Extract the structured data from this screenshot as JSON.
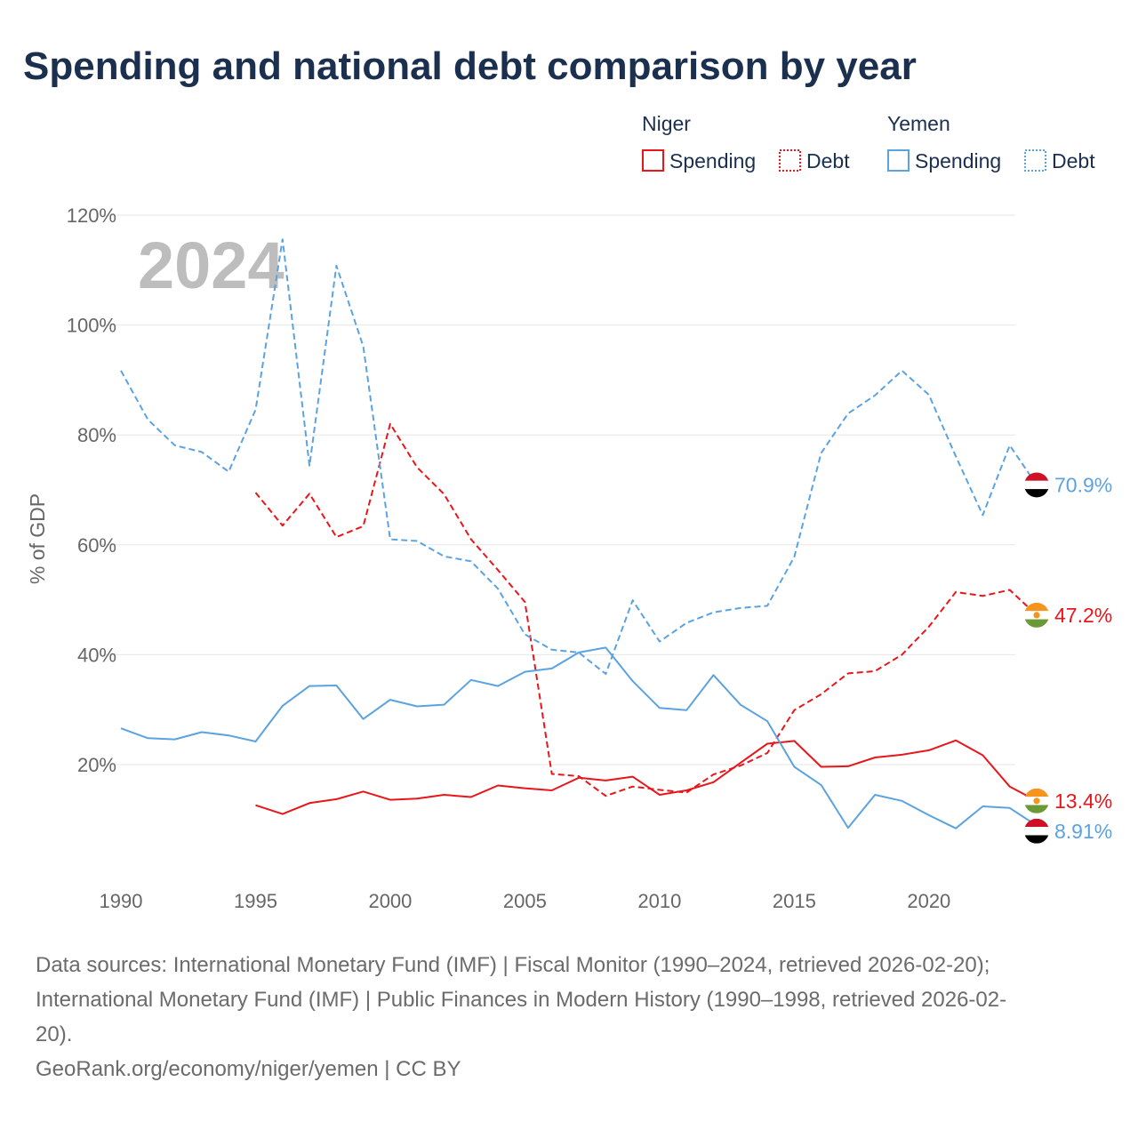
{
  "title": "Spending and national debt comparison by year",
  "legend": {
    "groups": [
      {
        "country": "Niger",
        "color": "#e8161b",
        "items": [
          {
            "label": "Spending",
            "style": "solid"
          },
          {
            "label": "Debt",
            "style": "dotted"
          }
        ]
      },
      {
        "country": "Yemen",
        "color": "#5ba3e0",
        "items": [
          {
            "label": "Spending",
            "style": "solid"
          },
          {
            "label": "Debt",
            "style": "dotted"
          }
        ]
      }
    ]
  },
  "chart_data": {
    "type": "line",
    "ylabel": "% of GDP",
    "ylim": [
      0,
      120
    ],
    "xlim": [
      1990,
      2024
    ],
    "yticks": [
      20,
      40,
      60,
      80,
      100,
      120
    ],
    "ytick_labels": [
      "20%",
      "40%",
      "60%",
      "80%",
      "100%",
      "120%"
    ],
    "xticks": [
      1990,
      1995,
      2000,
      2005,
      2010,
      2015,
      2020
    ],
    "xtick_labels": [
      "1990",
      "1995",
      "2000",
      "2005",
      "2010",
      "2015",
      "2020"
    ],
    "year_watermark": "2024",
    "series": [
      {
        "name": "Niger Spending",
        "country": "Niger",
        "kind": "spending",
        "color": "#e8161b",
        "style": "solid",
        "end_label": "13.4%",
        "x": [
          1995,
          1996,
          1997,
          1998,
          1999,
          2000,
          2001,
          2002,
          2003,
          2004,
          2005,
          2006,
          2007,
          2008,
          2009,
          2010,
          2011,
          2012,
          2013,
          2014,
          2015,
          2016,
          2017,
          2018,
          2019,
          2020,
          2021,
          2022,
          2023,
          2024
        ],
        "values": [
          12.6,
          11.0,
          13.0,
          13.7,
          15.1,
          13.6,
          13.8,
          14.5,
          14.1,
          16.2,
          15.7,
          15.3,
          17.6,
          17.1,
          17.8,
          14.5,
          15.3,
          16.8,
          20.3,
          23.8,
          24.3,
          19.6,
          19.7,
          21.3,
          21.8,
          22.6,
          24.4,
          21.7,
          16.0,
          13.4
        ]
      },
      {
        "name": "Niger Debt",
        "country": "Niger",
        "kind": "debt",
        "color": "#e8161b",
        "style": "dashed",
        "end_label": "47.2%",
        "x": [
          1995,
          1996,
          1997,
          1998,
          1999,
          2000,
          2001,
          2002,
          2003,
          2004,
          2005,
          2006,
          2007,
          2008,
          2009,
          2010,
          2011,
          2012,
          2013,
          2014,
          2015,
          2016,
          2017,
          2018,
          2019,
          2020,
          2021,
          2022,
          2023,
          2024
        ],
        "values": [
          69.5,
          63.5,
          69.3,
          61.4,
          63.4,
          82.0,
          74.1,
          69.2,
          61.0,
          55.4,
          49.6,
          18.3,
          17.9,
          14.3,
          16.0,
          15.4,
          14.9,
          18.2,
          19.8,
          22.1,
          29.9,
          32.8,
          36.6,
          37.0,
          40.0,
          45.1,
          51.4,
          50.7,
          51.8,
          47.2
        ]
      },
      {
        "name": "Yemen Spending",
        "country": "Yemen",
        "kind": "spending",
        "color": "#5ba3e0",
        "style": "solid",
        "end_label": "8.91%",
        "x": [
          1990,
          1991,
          1992,
          1993,
          1994,
          1995,
          1996,
          1997,
          1998,
          1999,
          2000,
          2001,
          2002,
          2003,
          2004,
          2005,
          2006,
          2007,
          2008,
          2009,
          2010,
          2011,
          2012,
          2013,
          2014,
          2015,
          2016,
          2017,
          2018,
          2019,
          2020,
          2021,
          2022,
          2023,
          2024
        ],
        "values": [
          26.6,
          24.8,
          24.6,
          25.9,
          25.3,
          24.2,
          30.7,
          34.3,
          34.4,
          28.3,
          31.8,
          30.6,
          30.9,
          35.4,
          34.3,
          36.9,
          37.5,
          40.4,
          41.3,
          35.2,
          30.3,
          29.9,
          36.3,
          30.9,
          27.9,
          19.6,
          16.3,
          8.5,
          14.5,
          13.4,
          10.8,
          8.4,
          12.4,
          12.1,
          8.9
        ]
      },
      {
        "name": "Yemen Debt",
        "country": "Yemen",
        "kind": "debt",
        "color": "#5ba3e0",
        "style": "dashed",
        "end_label": "70.9%",
        "x": [
          1990,
          1991,
          1992,
          1993,
          1994,
          1995,
          1996,
          1997,
          1998,
          1999,
          2000,
          2001,
          2002,
          2003,
          2004,
          2005,
          2006,
          2007,
          2008,
          2009,
          2010,
          2011,
          2012,
          2013,
          2014,
          2015,
          2016,
          2017,
          2018,
          2019,
          2020,
          2021,
          2022,
          2023,
          2024
        ],
        "values": [
          91.7,
          82.8,
          78.1,
          76.9,
          73.3,
          84.6,
          115.6,
          74.4,
          110.8,
          96.1,
          61.0,
          60.7,
          57.9,
          57.0,
          52.0,
          43.7,
          40.9,
          40.4,
          36.5,
          49.9,
          42.4,
          45.8,
          47.7,
          48.5,
          48.9,
          57.8,
          76.7,
          83.9,
          87.2,
          91.7,
          87.3,
          76.1,
          65.4,
          78.1,
          70.9
        ]
      }
    ]
  },
  "sources": [
    "Data sources: International Monetary Fund (IMF) | Fiscal Monitor (1990–2024, retrieved 2026-02-20);",
    "International Monetary Fund (IMF) | Public Finances in Modern History (1990–1998, retrieved 2026-02-",
    "20).",
    "GeoRank.org/economy/niger/yemen | CC BY"
  ]
}
